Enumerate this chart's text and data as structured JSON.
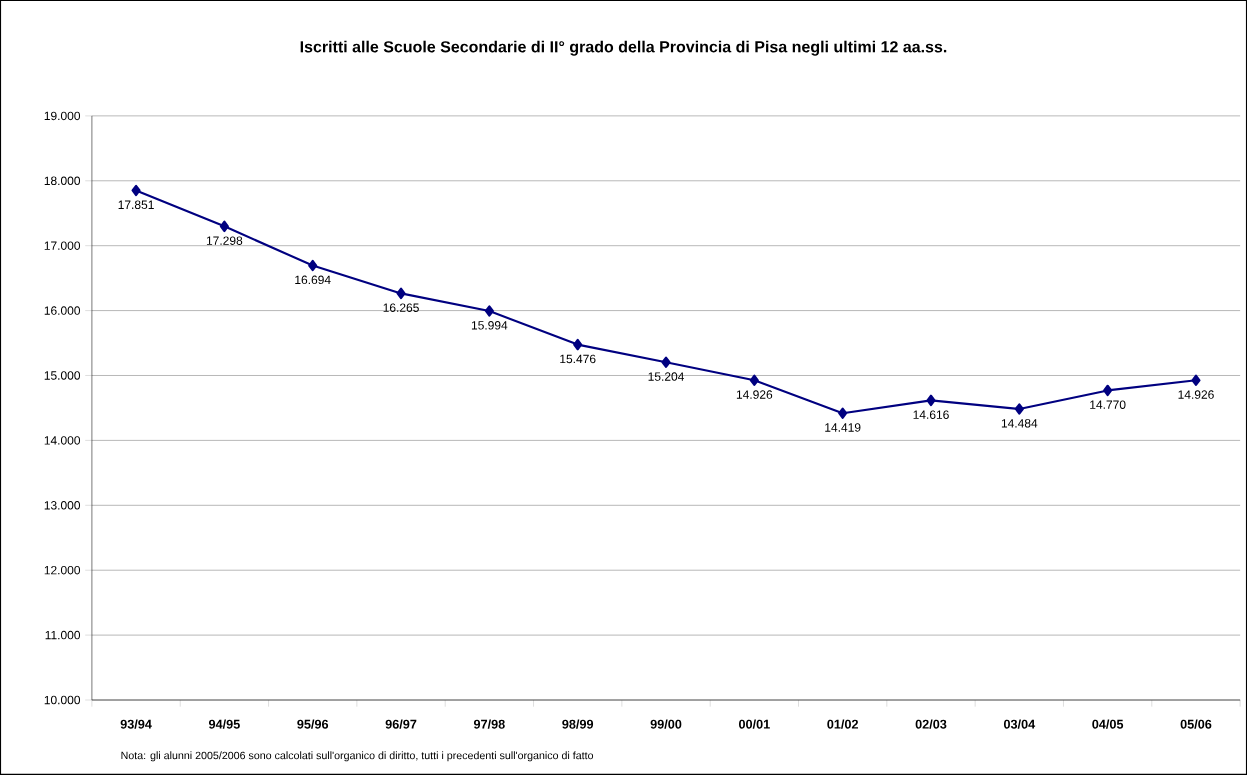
{
  "chart_data": {
    "type": "line",
    "title": "Iscritti  alle Scuole Secondarie di II° grado della Provincia di Pisa negli ultimi 12 aa.ss.",
    "categories": [
      "93/94",
      "94/95",
      "95/96",
      "96/97",
      "97/98",
      "98/99",
      "99/00",
      "00/01",
      "01/02",
      "02/03",
      "03/04",
      "04/05",
      "05/06"
    ],
    "series": [
      {
        "color": "#000080",
        "values": [
          17851,
          17298,
          16694,
          16265,
          15994,
          15476,
          15204,
          14926,
          14419,
          14616,
          14484,
          14770,
          14926
        ],
        "value_labels": [
          "17.851",
          "17.298",
          "16.694",
          "16.265",
          "15.994",
          "15.476",
          "15.204",
          "14.926",
          "14.419",
          "14.616",
          "14.484",
          "14.770",
          "14.926"
        ]
      }
    ],
    "ylim": [
      10000,
      19000
    ],
    "yticks": [
      {
        "value": 10000,
        "label": "10.000"
      },
      {
        "value": 11000,
        "label": "11.000"
      },
      {
        "value": 12000,
        "label": "12.000"
      },
      {
        "value": 13000,
        "label": "13.000"
      },
      {
        "value": 14000,
        "label": "14.000"
      },
      {
        "value": 15000,
        "label": "15.000"
      },
      {
        "value": 16000,
        "label": "16.000"
      },
      {
        "value": 17000,
        "label": "17.000"
      },
      {
        "value": 18000,
        "label": "18.000"
      },
      {
        "value": 19000,
        "label": "19.000"
      }
    ],
    "grid": "y",
    "marker": "diamond",
    "line_style": "solid",
    "annotations": [
      "Nota: gli alunni 2005/2006 sono calcolati sull'organico di diritto, tutti i precedenti sull'organico di fatto"
    ]
  }
}
